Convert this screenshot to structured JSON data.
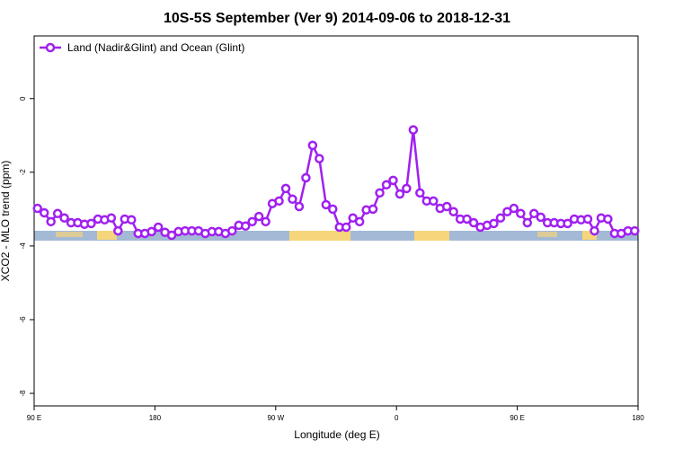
{
  "chart_data": {
    "type": "line",
    "title": "10S-5S September (Ver 9)   2014-09-06 to 2018-12-31",
    "x_label": "Longitude (deg E)",
    "y_label": "XCO2 - MLO trend (ppm)",
    "xlim": [
      90,
      540
    ],
    "ylim": [
      -8.34,
      1.7
    ],
    "xticks": [
      {
        "value": 90,
        "label": "90 E"
      },
      180,
      {
        "value": 270,
        "label": "90 W"
      },
      {
        "value": 360,
        "label": "0"
      },
      {
        "value": 450,
        "label": "90 E"
      },
      {
        "value": 540,
        "label": "180"
      }
    ],
    "yticks": [
      0,
      -2,
      -4,
      -6,
      -8
    ],
    "legend": "top-left",
    "x": [
      92.5,
      97.5,
      102.5,
      107.5,
      112.5,
      117.5,
      122.5,
      127.5,
      132.5,
      137.5,
      142.5,
      147.5,
      152.5,
      157.5,
      162.5,
      167.5,
      172.5,
      177.5,
      182.5,
      187.5,
      192.5,
      197.5,
      202.5,
      207.5,
      212.5,
      217.5,
      222.5,
      227.5,
      232.5,
      237.5,
      242.5,
      247.5,
      252.5,
      257.5,
      262.5,
      267.5,
      272.5,
      277.5,
      282.5,
      287.5,
      292.5,
      297.5,
      302.5,
      307.5,
      312.5,
      317.5,
      322.5,
      327.5,
      332.5,
      337.5,
      342.5,
      347.5,
      352.5,
      357.5,
      362.5,
      367.5,
      372.5,
      377.5,
      382.5,
      387.5,
      392.5,
      397.5,
      402.5,
      407.5,
      412.5,
      417.5,
      422.5,
      427.5,
      432.5,
      437.5,
      442.5,
      447.5,
      452.5,
      457.5,
      462.5,
      467.5,
      472.5,
      477.5,
      482.5,
      487.5,
      492.5,
      497.5,
      502.5,
      507.5,
      512.5,
      517.5,
      522.5,
      527.5,
      532.5,
      537.5
    ],
    "series": [
      {
        "name": "Land (Nadir&Glint) and Ocean (Glint)",
        "color": "#a020f0",
        "values": [
          -2.98,
          -3.1,
          -3.34,
          -3.12,
          -3.24,
          -3.37,
          -3.37,
          -3.41,
          -3.39,
          -3.27,
          -3.29,
          -3.24,
          -3.59,
          -3.27,
          -3.29,
          -3.66,
          -3.66,
          -3.61,
          -3.49,
          -3.63,
          -3.71,
          -3.61,
          -3.59,
          -3.59,
          -3.59,
          -3.66,
          -3.61,
          -3.61,
          -3.66,
          -3.59,
          -3.44,
          -3.46,
          -3.34,
          -3.2,
          -3.34,
          -2.85,
          -2.78,
          -2.44,
          -2.73,
          -2.93,
          -2.15,
          -1.27,
          -1.63,
          -2.88,
          -3.0,
          -3.49,
          -3.49,
          -3.24,
          -3.34,
          -3.02,
          -3.0,
          -2.56,
          -2.34,
          -2.22,
          -2.59,
          -2.44,
          -0.85,
          -2.56,
          -2.78,
          -2.78,
          -2.98,
          -2.93,
          -3.07,
          -3.27,
          -3.27,
          -3.37,
          -3.49,
          -3.44,
          -3.39,
          -3.24,
          -3.07,
          -2.98,
          -3.12,
          -3.37,
          -3.12,
          -3.22,
          -3.37,
          -3.37,
          -3.39,
          -3.39,
          -3.27,
          -3.29,
          -3.27,
          -3.59,
          -3.24,
          -3.27,
          -3.66,
          -3.66,
          -3.59,
          -3.59
        ]
      }
    ]
  }
}
